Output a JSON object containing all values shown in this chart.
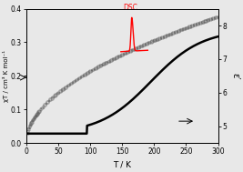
{
  "title": "",
  "xlabel": "T / K",
  "ylabel_left": "χT / cm³ K mol⁻¹",
  "ylabel_right": "ε′",
  "xlim": [
    0,
    300
  ],
  "ylim_left": [
    0.0,
    0.4
  ],
  "ylim_right": [
    4.5,
    8.5
  ],
  "yticks_left": [
    0.0,
    0.1,
    0.2,
    0.3,
    0.4
  ],
  "yticks_right": [
    5,
    6,
    7,
    8
  ],
  "xticks": [
    0,
    50,
    100,
    150,
    200,
    250,
    300
  ],
  "bg_color": "#e8e8e8",
  "chiT_color": "#444444",
  "eps_color": "#000000",
  "dsc_color": "#ff0000",
  "dsc_label": "DSC"
}
